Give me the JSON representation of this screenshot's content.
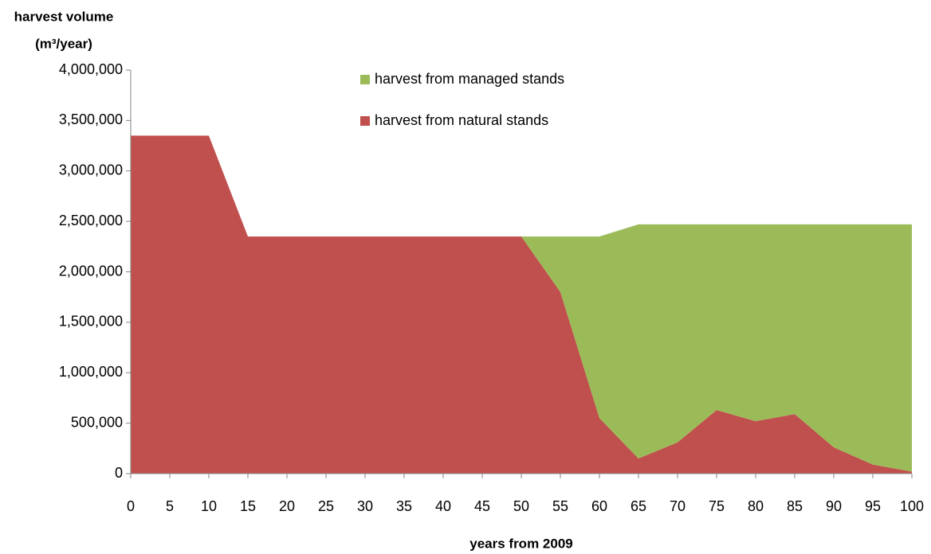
{
  "chart_data": {
    "type": "stacked-area",
    "y_label": [
      "harvest volume",
      "(m³/year)"
    ],
    "x_label": "years from 2009",
    "x": [
      0,
      5,
      10,
      15,
      20,
      25,
      30,
      35,
      40,
      45,
      50,
      55,
      60,
      65,
      70,
      75,
      80,
      85,
      90,
      95,
      100
    ],
    "series": [
      {
        "name": "harvest from natural stands",
        "color": "#c0504d",
        "values": [
          3350000,
          3350000,
          3350000,
          2350000,
          2350000,
          2350000,
          2350000,
          2350000,
          2350000,
          2350000,
          2350000,
          1800000,
          550000,
          150000,
          310000,
          630000,
          520000,
          590000,
          260000,
          90000,
          20000
        ]
      },
      {
        "name": "harvest from managed stands",
        "color": "#9bbb59",
        "values": [
          0,
          0,
          0,
          0,
          0,
          0,
          0,
          0,
          0,
          0,
          0,
          550000,
          1800000,
          2320000,
          2160000,
          1840000,
          1950000,
          1880000,
          2210000,
          2380000,
          2450000
        ]
      }
    ],
    "xlim": [
      0,
      100
    ],
    "xticks": [
      0,
      5,
      10,
      15,
      20,
      25,
      30,
      35,
      40,
      45,
      50,
      55,
      60,
      65,
      70,
      75,
      80,
      85,
      90,
      95,
      100
    ],
    "ylim": [
      0,
      4000000
    ],
    "yticks": [
      0,
      {
        "value": 500000,
        "label": "500,000"
      },
      {
        "value": 1000000,
        "label": "1,000,000"
      },
      {
        "value": 1500000,
        "label": "1,500,000"
      },
      {
        "value": 2000000,
        "label": "2,000,000"
      },
      {
        "value": 2500000,
        "label": "2,500,000"
      },
      {
        "value": 3000000,
        "label": "3,000,000"
      },
      {
        "value": 3500000,
        "label": "3,500,000"
      },
      {
        "value": 4000000,
        "label": "4,000,000"
      }
    ],
    "grid": false,
    "legend": "top"
  }
}
